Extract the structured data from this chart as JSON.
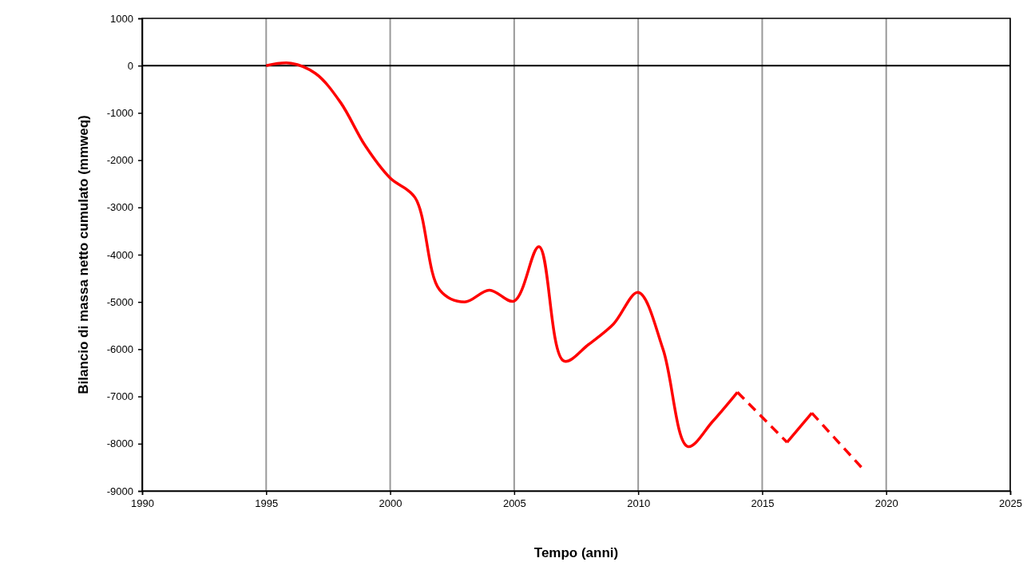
{
  "chart_data": {
    "type": "line",
    "xlabel": "Tempo (anni)",
    "ylabel": "Bilancio di massa netto cumulato (mmweq)",
    "xlim": [
      1990,
      2025
    ],
    "xticks": [
      1990,
      1995,
      2000,
      2005,
      2010,
      2015,
      2020,
      2025
    ],
    "ylim": [
      -9000,
      1000
    ],
    "yticks": [
      -9000,
      -8000,
      -7000,
      -6000,
      -5000,
      -4000,
      -3000,
      -2000,
      -1000,
      0,
      1000
    ],
    "grid": "x",
    "marker": "none",
    "ref_lines": [
      {
        "axis": "y",
        "value": 0,
        "color": "#000000"
      }
    ],
    "series": [
      {
        "color": "#ff0000",
        "line_style": "solid",
        "x": [
          1995,
          1996,
          1997,
          1998,
          1999,
          2000,
          2001,
          2002,
          2003,
          2004,
          2005,
          2006,
          2007,
          2008,
          2009,
          2010,
          2011,
          2012,
          2013,
          2014
        ],
        "values": [
          0,
          50,
          -170,
          -780,
          -1700,
          -2380,
          -2790,
          -4750,
          -5000,
          -4750,
          -4980,
          -3830,
          -6250,
          -5900,
          -5470,
          -4800,
          -6000,
          -8060,
          -7530,
          -6910
        ]
      },
      {
        "color": "#ff0000",
        "line_style": "dashed",
        "x": [
          2014,
          2016
        ],
        "values": [
          -6910,
          -7970
        ]
      },
      {
        "color": "#ff0000",
        "line_style": "solid",
        "x": [
          2016,
          2017
        ],
        "values": [
          -7970,
          -7350
        ]
      },
      {
        "color": "#ff0000",
        "line_style": "dashed",
        "x": [
          2017,
          2019
        ],
        "values": [
          -7350,
          -8500
        ]
      }
    ]
  }
}
